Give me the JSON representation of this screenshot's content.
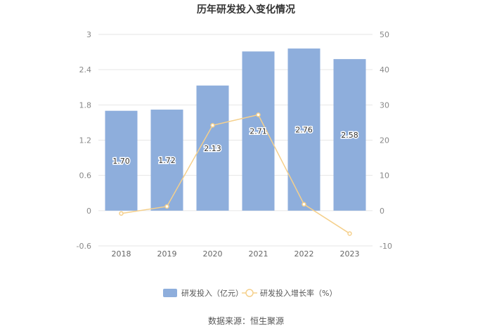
{
  "chart_data": {
    "type": "bar",
    "title": "历年研发投入变化情况",
    "categories": [
      "2018",
      "2019",
      "2020",
      "2021",
      "2022",
      "2023"
    ],
    "series": [
      {
        "name": "研发投入（亿元）",
        "type": "bar",
        "axis": "left",
        "values": [
          1.7,
          1.72,
          2.13,
          2.71,
          2.76,
          2.58
        ],
        "labels": [
          "1.70",
          "1.72",
          "2.13",
          "2.71",
          "2.76",
          "2.58"
        ],
        "color": "#8eaedc"
      },
      {
        "name": "研发投入增长率（%）",
        "type": "line",
        "axis": "right",
        "values": [
          -0.8,
          1.2,
          24.2,
          27.2,
          1.8,
          -6.5
        ],
        "color": "#f5d08c"
      }
    ],
    "left_axis": {
      "ticks": [
        "3",
        "2.4",
        "1.8",
        "1.2",
        "0.6",
        "0",
        "-0.6"
      ],
      "ylim": [
        -0.6,
        3
      ]
    },
    "right_axis": {
      "ticks": [
        "50",
        "40",
        "30",
        "20",
        "10",
        "0",
        "-10"
      ],
      "ylim": [
        -10,
        50
      ]
    },
    "grid": true,
    "legend_position": "bottom"
  },
  "source": "数据来源：恒生聚源"
}
